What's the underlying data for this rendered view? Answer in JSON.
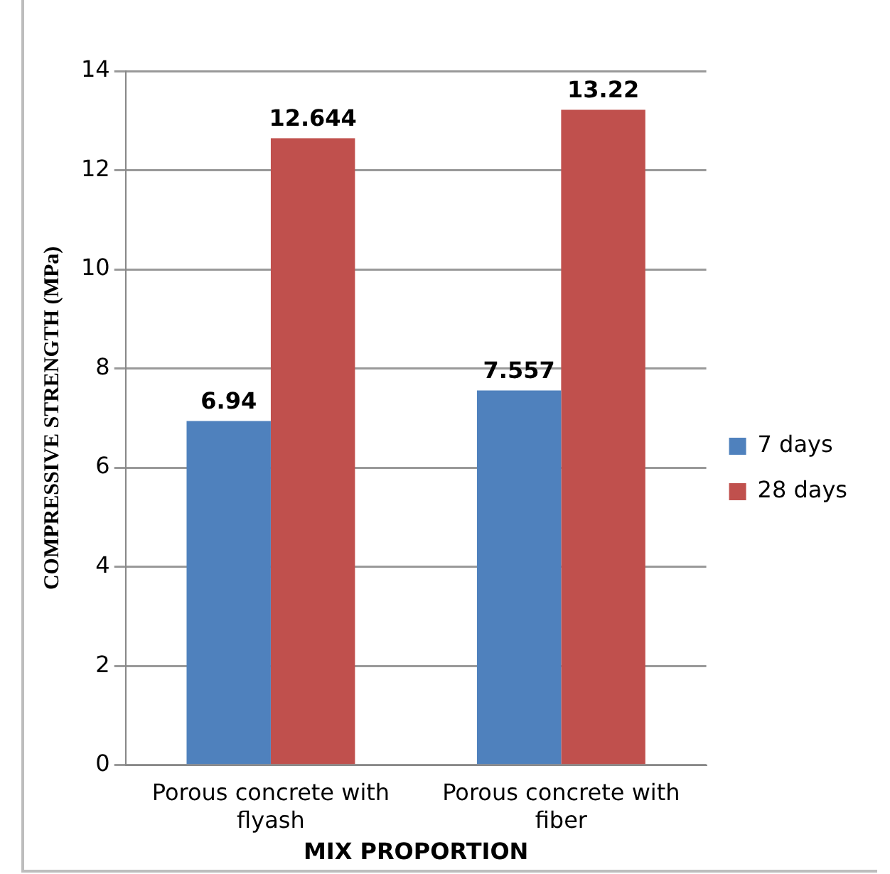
{
  "chart_data": {
    "type": "bar",
    "xlabel": "MIX PROPORTION",
    "ylabel": "COMPRESSIVE STRENGTH (MPa)",
    "categories": [
      "Porous concrete with flyash",
      "Porous concrete with fiber"
    ],
    "series": [
      {
        "name": "7 days",
        "color": "#4f81bd",
        "values": [
          6.94,
          7.557
        ]
      },
      {
        "name": "28 days",
        "color": "#c0504d",
        "values": [
          12.644,
          13.22
        ]
      }
    ],
    "ylim": [
      0,
      14
    ],
    "yticks": [
      0,
      2,
      4,
      6,
      8,
      10,
      12,
      14
    ],
    "grid": "y",
    "legend": "right",
    "data_labels": true
  }
}
